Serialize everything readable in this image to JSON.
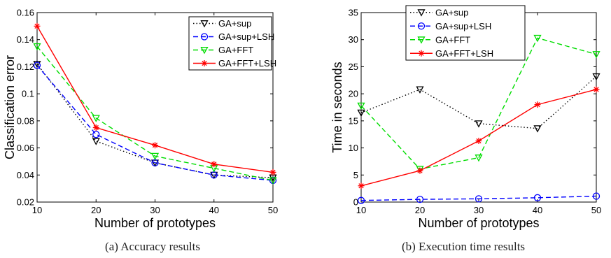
{
  "chart_data": [
    {
      "type": "line",
      "caption": "(a) Accuracy results",
      "title": "",
      "xlabel": "Number of prototypes",
      "ylabel": "Classification error",
      "x": [
        10,
        20,
        30,
        40,
        50
      ],
      "xlim": [
        10,
        50
      ],
      "ylim": [
        0.02,
        0.16
      ],
      "xticks": [
        "10",
        "20",
        "30",
        "40",
        "50"
      ],
      "yticks": [
        "0.02",
        "0.04",
        "0.06",
        "0.08",
        "0.1",
        "0.12",
        "0.14",
        "0.16"
      ],
      "legend": "top-right",
      "grid": false,
      "series": [
        {
          "name": "GA+sup",
          "values": [
            0.122,
            0.065,
            0.049,
            0.04,
            0.038
          ],
          "color": "#000000",
          "marker": "triangle-down",
          "dash": "dotted"
        },
        {
          "name": "GA+sup+LSH",
          "values": [
            0.121,
            0.07,
            0.049,
            0.04,
            0.036
          ],
          "color": "#0000ff",
          "marker": "circle",
          "dash": "dashed"
        },
        {
          "name": "GA+FFT",
          "values": [
            0.135,
            0.082,
            0.054,
            0.045,
            0.036
          ],
          "color": "#00dd00",
          "marker": "triangle-down",
          "dash": "dashed"
        },
        {
          "name": "GA+FFT+LSH",
          "values": [
            0.15,
            0.075,
            0.062,
            0.048,
            0.042
          ],
          "color": "#ff0000",
          "marker": "star",
          "dash": "solid"
        }
      ]
    },
    {
      "type": "line",
      "caption": "(b) Execution time results",
      "title": "",
      "xlabel": "Number of prototypes",
      "ylabel": "Time in seconds",
      "x": [
        10,
        20,
        30,
        40,
        50
      ],
      "xlim": [
        10,
        50
      ],
      "ylim": [
        0,
        35
      ],
      "xticks": [
        "10",
        "20",
        "30",
        "40",
        "50"
      ],
      "yticks": [
        "0",
        "5",
        "10",
        "15",
        "20",
        "25",
        "30",
        "35"
      ],
      "legend": "top",
      "grid": false,
      "series": [
        {
          "name": "GA+sup",
          "values": [
            16.5,
            20.8,
            14.5,
            13.6,
            23.2
          ],
          "color": "#000000",
          "marker": "triangle-down",
          "dash": "dotted"
        },
        {
          "name": "GA+sup+LSH",
          "values": [
            0.3,
            0.5,
            0.6,
            0.8,
            1.1
          ],
          "color": "#0000ff",
          "marker": "circle",
          "dash": "dashed"
        },
        {
          "name": "GA+FFT",
          "values": [
            17.8,
            6.1,
            8.2,
            30.3,
            27.3
          ],
          "color": "#00dd00",
          "marker": "triangle-down",
          "dash": "dashed"
        },
        {
          "name": "GA+FFT+LSH",
          "values": [
            3.0,
            5.8,
            11.3,
            18.0,
            20.8
          ],
          "color": "#ff0000",
          "marker": "star",
          "dash": "solid"
        }
      ]
    }
  ]
}
